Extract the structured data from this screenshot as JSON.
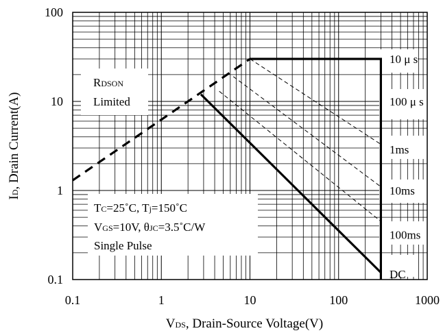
{
  "chart_data": {
    "type": "line",
    "xscale": "log",
    "yscale": "log",
    "xlim": [
      0.1,
      1000
    ],
    "ylim": [
      0.1,
      100
    ],
    "xticks": [
      "0.1",
      "1",
      "10",
      "100",
      "1000"
    ],
    "yticks": [
      "0.1",
      "1",
      "10",
      "100"
    ],
    "xlabel": {
      "main": "V",
      "sub": "DS",
      "rest": ", Drain-Source Voltage(V)"
    },
    "ylabel": {
      "main": "I",
      "sub": "D",
      "rest": ", Drain Current(A)"
    },
    "grid": true,
    "annotations": {
      "rdson": {
        "line1_main": "R",
        "line1_sub": "DSON",
        "line2": "Limited"
      },
      "conditions": {
        "line1": {
          "a": "T",
          "a_sub": "C",
          "b": "=25˚C, T",
          "b_sub": "j",
          "c": "=150˚C"
        },
        "line2": {
          "a": "V",
          "a_sub": "GS",
          "b": "=10V, θ",
          "b_sub": "JC",
          "c": "=3.5˚C/W"
        },
        "line3": "Single Pulse"
      }
    },
    "series": [
      {
        "name": "RDSON Limited",
        "style": "thick-dashed",
        "x": [
          0.1,
          10
        ],
        "y": [
          1.3,
          30
        ]
      },
      {
        "name": "10 μ s",
        "style": "thick-solid",
        "x": [
          10,
          300,
          300
        ],
        "y": [
          30,
          30,
          0.1
        ]
      },
      {
        "name": "100 μ s",
        "style": "thin-dashed",
        "x": [
          10,
          300
        ],
        "y": [
          30,
          3.3
        ]
      },
      {
        "name": "1ms",
        "style": "thin-dashed",
        "x": [
          6.5,
          300
        ],
        "y": [
          19,
          1.1
        ]
      },
      {
        "name": "10ms",
        "style": "thin-dashed",
        "x": [
          4.5,
          300
        ],
        "y": [
          13,
          0.45
        ]
      },
      {
        "name": "DC",
        "style": "thick-solid",
        "x": [
          2.8,
          300
        ],
        "y": [
          12,
          0.12
        ]
      }
    ],
    "curve_labels": [
      {
        "text": "10 μ s",
        "y_at": 30
      },
      {
        "text": "100 μ s",
        "y_at": 10
      },
      {
        "text": "1ms",
        "y_at": 2.9
      },
      {
        "text": "10ms",
        "y_at": 1.0
      },
      {
        "text": "100ms",
        "y_at": 0.32
      },
      {
        "text": "DC",
        "y_at": 0.115
      }
    ]
  }
}
